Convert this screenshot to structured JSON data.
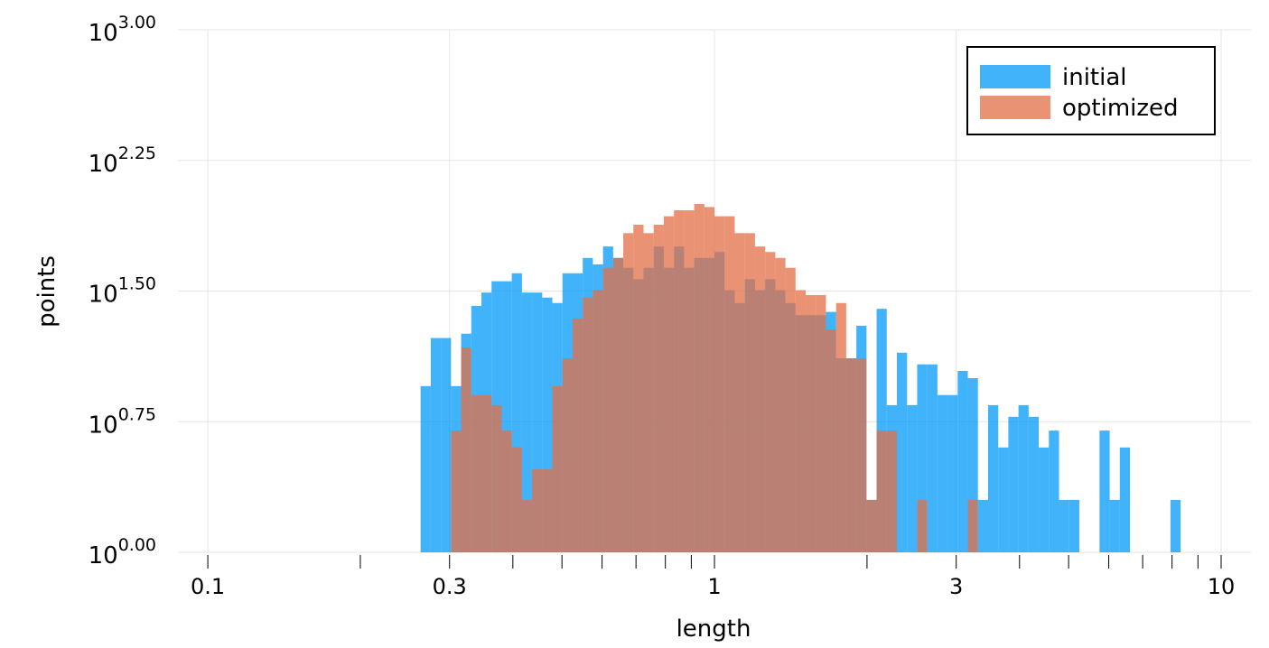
{
  "chart_data": {
    "type": "histogram",
    "xlabel": "length",
    "ylabel": "points",
    "xscale": "log",
    "yscale": "log",
    "grid": true,
    "legend": "top-right",
    "xlim": [
      0.0873,
      11.45
    ],
    "ylim": [
      1,
      1000
    ],
    "xticks": [
      0.1,
      0.3,
      1,
      3,
      10
    ],
    "xminorticks": [
      0.2,
      0.4,
      0.5,
      0.6,
      0.7,
      0.8,
      0.9,
      2,
      4,
      5,
      6,
      7,
      8,
      9
    ],
    "yticks": [
      {
        "value": 1,
        "label": "10",
        "exponent": "0.00"
      },
      {
        "value": 5.623,
        "label": "10",
        "exponent": "0.75"
      },
      {
        "value": 31.62,
        "label": "10",
        "exponent": "1.50"
      },
      {
        "value": 177.8,
        "label": "10",
        "exponent": "2.25"
      },
      {
        "value": 1000,
        "label": "10",
        "exponent": "3.00"
      }
    ],
    "bins": [
      0.263,
      0.2754,
      0.2884,
      0.302,
      0.3162,
      0.3311,
      0.3467,
      0.3631,
      0.3802,
      0.3981,
      0.4169,
      0.4365,
      0.4571,
      0.4786,
      0.5012,
      0.5248,
      0.5495,
      0.5754,
      0.6026,
      0.631,
      0.6607,
      0.6918,
      0.7244,
      0.7586,
      0.7943,
      0.8318,
      0.871,
      0.912,
      0.955,
      1,
      1.0471,
      1.0965,
      1.1482,
      1.2023,
      1.2589,
      1.3183,
      1.3804,
      1.4454,
      1.5136,
      1.5849,
      1.6596,
      1.7378,
      1.8197,
      1.9055,
      1.9953,
      2.0893,
      2.1878,
      2.2909,
      2.3988,
      2.5119,
      2.6303,
      2.7542,
      2.884,
      3.02,
      3.1623,
      3.3113,
      3.4674,
      3.6308,
      3.8019,
      3.9811,
      4.1687,
      4.3652,
      4.5709,
      4.7863,
      5.0119,
      5.2481,
      5.4954,
      5.7544,
      6.0256,
      6.3096,
      6.6069,
      6.9183,
      7.2444,
      7.5858,
      7.9433,
      8.3176
    ],
    "series": [
      {
        "name": "initial",
        "color": "#009af9",
        "values": [
          9,
          17,
          17,
          9,
          18,
          26,
          31,
          36,
          36,
          40,
          31,
          31,
          29,
          27,
          40,
          40,
          49,
          45,
          57,
          49,
          43,
          37,
          43,
          57,
          43,
          57,
          43,
          49,
          49,
          53,
          32,
          27,
          37,
          32,
          37,
          32,
          27,
          23,
          23,
          23,
          24,
          13,
          13,
          20,
          2,
          25,
          7,
          14,
          7,
          12,
          12,
          8,
          8,
          11,
          10,
          2,
          7,
          4,
          6,
          7,
          6,
          4,
          5,
          2,
          2,
          0,
          0,
          5,
          2,
          4,
          0,
          0,
          0,
          0,
          2
        ]
      },
      {
        "name": "optimized",
        "color": "#e26f46",
        "values": [
          0,
          0,
          0,
          5,
          15,
          8,
          8,
          7,
          5,
          4,
          2,
          3,
          3,
          9,
          13,
          22,
          29,
          32,
          43,
          49,
          68,
          76,
          68,
          76,
          85,
          92,
          92,
          100,
          96,
          85,
          85,
          68,
          68,
          57,
          53,
          49,
          43,
          32,
          30,
          30,
          19,
          27,
          13,
          13,
          2,
          5,
          5,
          0,
          0,
          2,
          0,
          0,
          0,
          0,
          2,
          0,
          0,
          0,
          0,
          0,
          0,
          0,
          0,
          0,
          0,
          0,
          0,
          0,
          0,
          0,
          0,
          0,
          0,
          0,
          0
        ]
      }
    ]
  }
}
